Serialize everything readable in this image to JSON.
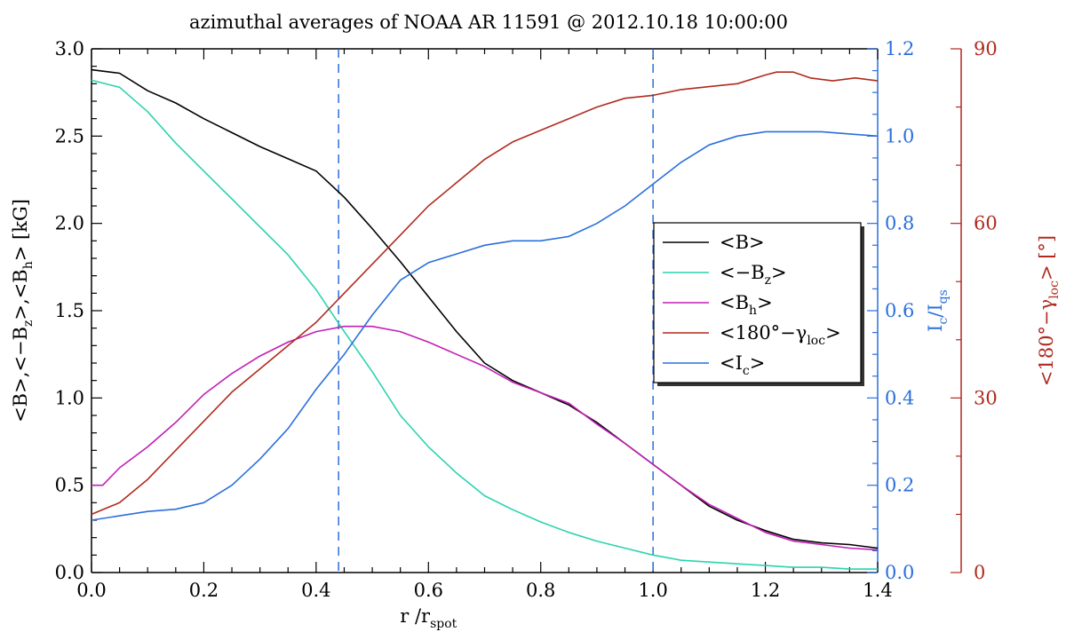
{
  "colors": {
    "B": "#000000",
    "neg_Bz": "#2ad3b0",
    "Bh": "#c21fb5",
    "gamma": "#b02a1f",
    "Ic": "#2a6fdb",
    "axis_left": "#000000",
    "axis_right1": "#2a6fdb",
    "axis_right2": "#b02a1f"
  },
  "chart_data": {
    "type": "line",
    "title": "azimuthal averages of NOAA AR 11591 @ 2012.10.18 10:00:00",
    "xlabel": {
      "main": "r /r",
      "sub": "spot"
    },
    "xlim": [
      0.0,
      1.4
    ],
    "x_ticks": [
      "0.0",
      "0.2",
      "0.4",
      "0.6",
      "0.8",
      "1.0",
      "1.2",
      "1.4"
    ],
    "x_tick_values": [
      0.0,
      0.2,
      0.4,
      0.6,
      0.8,
      1.0,
      1.2,
      1.4
    ],
    "y_left": {
      "label_parts": [
        "<B>,<−B",
        "z",
        ">,<B",
        "h",
        "> [kG]"
      ],
      "lim": [
        0.0,
        3.0
      ],
      "ticks": [
        "0.0",
        "0.5",
        "1.0",
        "1.5",
        "2.0",
        "2.5",
        "3.0"
      ],
      "tick_values": [
        0.0,
        0.5,
        1.0,
        1.5,
        2.0,
        2.5,
        3.0
      ]
    },
    "y_right1": {
      "label_parts": [
        "I",
        "c",
        "/I",
        "qs"
      ],
      "lim": [
        0.0,
        1.2
      ],
      "ticks": [
        "0.0",
        "0.2",
        "0.4",
        "0.6",
        "0.8",
        "1.0",
        "1.2"
      ],
      "tick_values": [
        0.0,
        0.2,
        0.4,
        0.6,
        0.8,
        1.0,
        1.2
      ]
    },
    "y_right2": {
      "label_parts": [
        "<180°−γ",
        "loc",
        "> [°]"
      ],
      "lim": [
        0,
        90
      ],
      "ticks": [
        "0",
        "30",
        "60",
        "90"
      ],
      "tick_values": [
        0,
        30,
        60,
        90
      ]
    },
    "vlines": [
      0.44,
      1.0
    ],
    "series": [
      {
        "key": "B",
        "name": "<B>",
        "axis": "left",
        "x": [
          0.0,
          0.05,
          0.1,
          0.15,
          0.2,
          0.25,
          0.3,
          0.35,
          0.4,
          0.45,
          0.5,
          0.55,
          0.6,
          0.65,
          0.7,
          0.75,
          0.8,
          0.85,
          0.9,
          0.95,
          1.0,
          1.05,
          1.1,
          1.15,
          1.2,
          1.25,
          1.3,
          1.35,
          1.4
        ],
        "y": [
          2.88,
          2.86,
          2.76,
          2.69,
          2.6,
          2.52,
          2.44,
          2.37,
          2.3,
          2.15,
          1.97,
          1.78,
          1.58,
          1.38,
          1.2,
          1.1,
          1.03,
          0.96,
          0.86,
          0.74,
          0.62,
          0.5,
          0.38,
          0.3,
          0.24,
          0.19,
          0.17,
          0.16,
          0.14
        ]
      },
      {
        "key": "neg_Bz",
        "name": "<−B_z>",
        "axis": "left",
        "x": [
          0.0,
          0.05,
          0.1,
          0.15,
          0.2,
          0.25,
          0.3,
          0.35,
          0.4,
          0.45,
          0.5,
          0.55,
          0.6,
          0.65,
          0.7,
          0.75,
          0.8,
          0.85,
          0.9,
          0.95,
          1.0,
          1.05,
          1.1,
          1.15,
          1.2,
          1.25,
          1.3,
          1.35,
          1.4
        ],
        "y": [
          2.82,
          2.78,
          2.64,
          2.46,
          2.3,
          2.14,
          1.98,
          1.82,
          1.62,
          1.38,
          1.15,
          0.9,
          0.72,
          0.57,
          0.44,
          0.36,
          0.29,
          0.23,
          0.18,
          0.14,
          0.1,
          0.07,
          0.06,
          0.05,
          0.04,
          0.03,
          0.03,
          0.02,
          0.02
        ]
      },
      {
        "key": "Bh",
        "name": "<B_h>",
        "axis": "left",
        "x": [
          0.0,
          0.02,
          0.05,
          0.1,
          0.15,
          0.2,
          0.25,
          0.3,
          0.35,
          0.4,
          0.45,
          0.5,
          0.55,
          0.6,
          0.65,
          0.7,
          0.75,
          0.8,
          0.85,
          0.9,
          0.95,
          1.0,
          1.05,
          1.1,
          1.15,
          1.2,
          1.25,
          1.3,
          1.35,
          1.4
        ],
        "y": [
          0.5,
          0.5,
          0.6,
          0.72,
          0.86,
          1.02,
          1.14,
          1.24,
          1.32,
          1.38,
          1.41,
          1.41,
          1.38,
          1.32,
          1.25,
          1.18,
          1.09,
          1.03,
          0.97,
          0.85,
          0.74,
          0.62,
          0.5,
          0.39,
          0.31,
          0.23,
          0.18,
          0.16,
          0.14,
          0.13
        ]
      },
      {
        "key": "gamma",
        "name": "<180°−γ_loc>",
        "axis": "right2",
        "x": [
          0.0,
          0.05,
          0.1,
          0.15,
          0.2,
          0.25,
          0.3,
          0.35,
          0.4,
          0.45,
          0.5,
          0.55,
          0.6,
          0.65,
          0.7,
          0.75,
          0.8,
          0.85,
          0.9,
          0.95,
          1.0,
          1.05,
          1.1,
          1.15,
          1.2,
          1.22,
          1.25,
          1.28,
          1.32,
          1.36,
          1.4
        ],
        "y": [
          10,
          12,
          16,
          21,
          26,
          31,
          35,
          39,
          43,
          48,
          53,
          58,
          63,
          67,
          71,
          74,
          76,
          78,
          80,
          81.5,
          82,
          83,
          83.5,
          84,
          85.5,
          86,
          86,
          85,
          84.5,
          85,
          84.5
        ]
      },
      {
        "key": "Ic",
        "name": "<I_c>",
        "axis": "right1",
        "x": [
          0.0,
          0.05,
          0.1,
          0.15,
          0.2,
          0.25,
          0.3,
          0.35,
          0.4,
          0.45,
          0.5,
          0.55,
          0.6,
          0.65,
          0.7,
          0.75,
          0.8,
          0.85,
          0.9,
          0.95,
          1.0,
          1.05,
          1.1,
          1.15,
          1.2,
          1.25,
          1.3,
          1.35,
          1.4
        ],
        "y": [
          0.12,
          0.13,
          0.14,
          0.145,
          0.16,
          0.2,
          0.26,
          0.33,
          0.42,
          0.5,
          0.59,
          0.67,
          0.71,
          0.73,
          0.75,
          0.76,
          0.76,
          0.77,
          0.8,
          0.84,
          0.89,
          0.94,
          0.98,
          1.0,
          1.01,
          1.01,
          1.01,
          1.005,
          1.0
        ]
      }
    ],
    "legend": {
      "placement": "center-right",
      "entries": [
        {
          "key": "B",
          "parts": [
            "<B>"
          ]
        },
        {
          "key": "neg_Bz",
          "parts": [
            "<−B",
            "z",
            ">"
          ]
        },
        {
          "key": "Bh",
          "parts": [
            "<B",
            "h",
            ">"
          ]
        },
        {
          "key": "gamma",
          "parts": [
            "<180°−γ",
            "loc",
            ">"
          ]
        },
        {
          "key": "Ic",
          "parts": [
            "<I",
            "c",
            ">"
          ]
        }
      ]
    }
  }
}
